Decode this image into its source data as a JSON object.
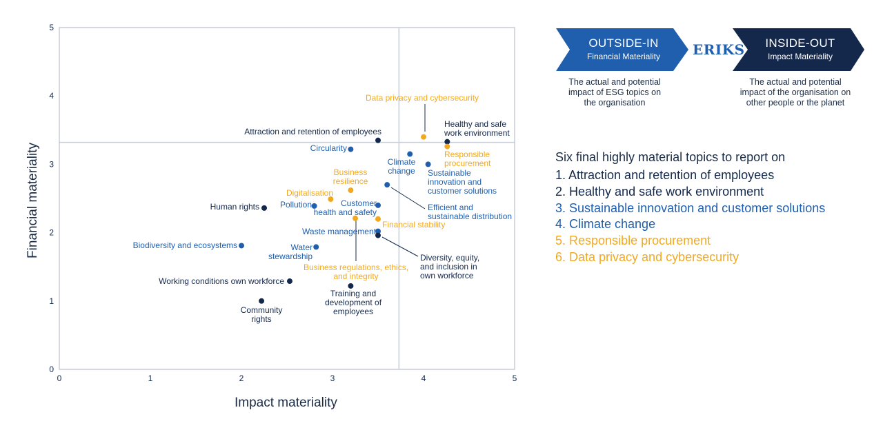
{
  "colors": {
    "dark": "#14284b",
    "blue": "#1f5fae",
    "orange": "#f2a91e",
    "grid": "#c7ccd4"
  },
  "chart_data": {
    "type": "scatter",
    "xlabel": "Impact materiality",
    "ylabel": "Financial materiality",
    "xlim": [
      0,
      5
    ],
    "ylim": [
      0,
      5
    ],
    "xticks": [
      "0",
      "1",
      "2",
      "3",
      "4",
      "5"
    ],
    "yticks": [
      "0",
      "1",
      "2",
      "3",
      "4",
      "5"
    ],
    "threshold_x": 3.73,
    "threshold_y": 3.32,
    "points": [
      {
        "label": "Data privacy and cybersecurity",
        "x": 4.0,
        "y": 3.4,
        "group": "orange"
      },
      {
        "label": "Healthy and safe work environment",
        "x": 4.26,
        "y": 3.33,
        "group": "dark"
      },
      {
        "label": "Attraction and retention of employees",
        "x": 3.5,
        "y": 3.35,
        "group": "dark"
      },
      {
        "label": "Circularity",
        "x": 3.2,
        "y": 3.22,
        "group": "blue"
      },
      {
        "label": "Responsible procurement",
        "x": 4.26,
        "y": 3.26,
        "group": "orange"
      },
      {
        "label": "Climate change",
        "x": 3.85,
        "y": 3.15,
        "group": "blue"
      },
      {
        "label": "Sustainable innovation and customer solutions",
        "x": 4.05,
        "y": 3.0,
        "group": "blue"
      },
      {
        "label": "Business resilience",
        "x": 3.2,
        "y": 2.62,
        "group": "orange"
      },
      {
        "label": "Efficient and sustainable distribution",
        "x": 3.6,
        "y": 2.7,
        "group": "blue"
      },
      {
        "label": "Digitalisation",
        "x": 2.98,
        "y": 2.49,
        "group": "orange"
      },
      {
        "label": "Pollution",
        "x": 2.8,
        "y": 2.39,
        "group": "blue"
      },
      {
        "label": "Human rights",
        "x": 2.25,
        "y": 2.36,
        "group": "dark"
      },
      {
        "label": "Customer health and safety",
        "x": 3.5,
        "y": 2.4,
        "group": "blue"
      },
      {
        "label": "Financial stability",
        "x": 3.5,
        "y": 2.2,
        "group": "orange"
      },
      {
        "label": "Business regulations, ethics, and integrity",
        "x": 3.25,
        "y": 2.21,
        "group": "orange"
      },
      {
        "label": "Waste management",
        "x": 3.5,
        "y": 2.02,
        "group": "blue"
      },
      {
        "label": "Diversity, equity, and inclusion in own workforce",
        "x": 3.5,
        "y": 1.96,
        "group": "dark"
      },
      {
        "label": "Biodiversity and ecosystems",
        "x": 2.0,
        "y": 1.81,
        "group": "blue"
      },
      {
        "label": "Water stewardship",
        "x": 2.82,
        "y": 1.79,
        "group": "blue"
      },
      {
        "label": "Working conditions own workforce",
        "x": 2.53,
        "y": 1.29,
        "group": "dark"
      },
      {
        "label": "Training and development of employees",
        "x": 3.2,
        "y": 1.22,
        "group": "dark"
      },
      {
        "label": "Community rights",
        "x": 2.22,
        "y": 1.0,
        "group": "dark"
      }
    ]
  },
  "banners": {
    "outside_in": {
      "title": "OUTSIDE-IN",
      "subtitle": "Financial Materiality",
      "desc": [
        "The actual and potential",
        "impact of ESG topics on",
        "the organisation"
      ]
    },
    "logo": "ERIKS",
    "inside_out": {
      "title": "INSIDE-OUT",
      "subtitle": "Impact Materiality",
      "desc": [
        "The actual and potential",
        "impact of the organisation on",
        "other people or the planet"
      ]
    }
  },
  "topics": {
    "title": "Six final highly material topics to report on",
    "items": [
      {
        "text": "1. Attraction and retention of employees",
        "group": "dark"
      },
      {
        "text": "2. Healthy and safe work environment",
        "group": "dark"
      },
      {
        "text": "3. Sustainable innovation and customer solutions",
        "group": "blue"
      },
      {
        "text": "4. Climate change",
        "group": "blue"
      },
      {
        "text": "5. Responsible procurement",
        "group": "orange"
      },
      {
        "text": "6. Data privacy and cybersecurity",
        "group": "orange"
      }
    ]
  }
}
